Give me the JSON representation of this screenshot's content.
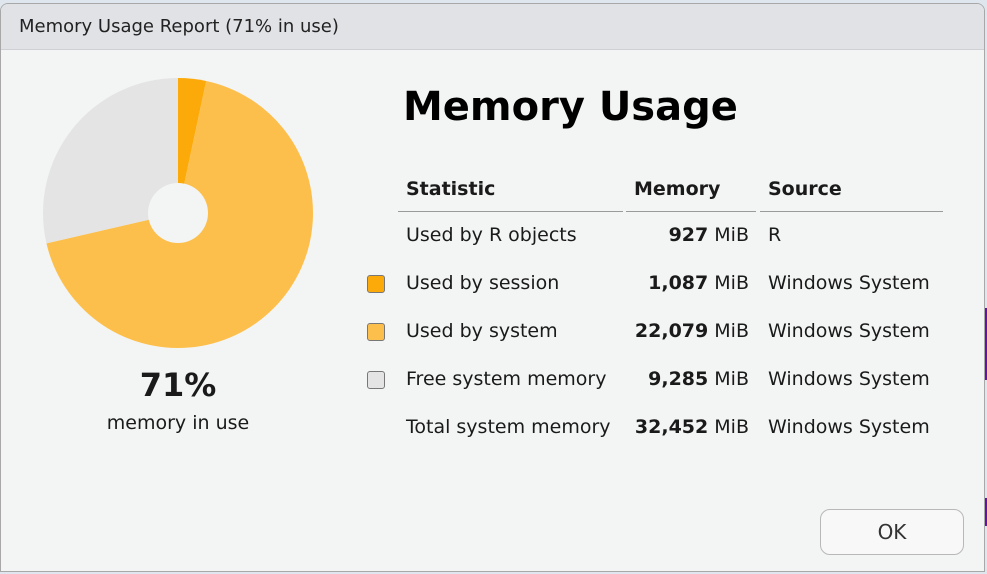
{
  "window": {
    "title": "Memory Usage Report (71% in use)"
  },
  "chart_data": {
    "type": "pie",
    "donut": true,
    "start": "top",
    "direction": "clockwise",
    "slices": [
      {
        "label": "Used by session",
        "value": 1087,
        "color": "#FBAA0A"
      },
      {
        "label": "Used by system",
        "value": 22079,
        "color": "#FDBF4B"
      },
      {
        "label": "Free system memory",
        "value": 9285,
        "color": "#E4E4E4"
      }
    ]
  },
  "summary": {
    "percent": "71%",
    "label": "memory in use"
  },
  "heading": "Memory Usage",
  "table": {
    "headers": [
      "Statistic",
      "Memory",
      "Source"
    ],
    "rows": [
      {
        "statistic": "Used by R objects",
        "value": "927",
        "unit": "MiB",
        "source": "R",
        "swatch": null
      },
      {
        "statistic": "Used by session",
        "value": "1,087",
        "unit": "MiB",
        "source": "Windows System",
        "swatch": "#FBAA0A"
      },
      {
        "statistic": "Used by system",
        "value": "22,079",
        "unit": "MiB",
        "source": "Windows System",
        "swatch": "#FDBF4B"
      },
      {
        "statistic": "Free system memory",
        "value": "9,285",
        "unit": "MiB",
        "source": "Windows System",
        "swatch": "#E4E4E4"
      },
      {
        "statistic": "Total system memory",
        "value": "32,452",
        "unit": "MiB",
        "source": "Windows System",
        "swatch": null
      }
    ]
  },
  "buttons": {
    "ok": "OK"
  }
}
